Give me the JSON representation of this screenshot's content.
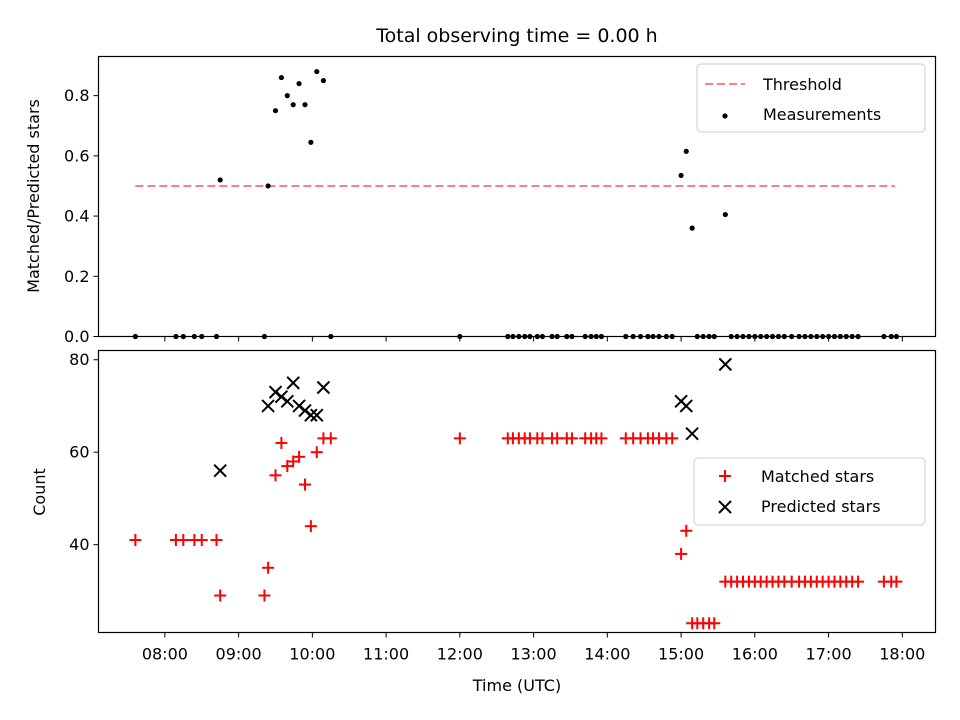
{
  "chart_data": {
    "type": "scatter",
    "title": "Total observing time = 0.00 h",
    "xlabel": "Time (UTC)",
    "xlim": [
      7.1,
      18.45
    ],
    "xticks": [
      {
        "value": 8,
        "label": "08:00"
      },
      {
        "value": 9,
        "label": "09:00"
      },
      {
        "value": 10,
        "label": "10:00"
      },
      {
        "value": 11,
        "label": "11:00"
      },
      {
        "value": 12,
        "label": "12:00"
      },
      {
        "value": 13,
        "label": "13:00"
      },
      {
        "value": 14,
        "label": "14:00"
      },
      {
        "value": 15,
        "label": "15:00"
      },
      {
        "value": 16,
        "label": "16:00"
      },
      {
        "value": 17,
        "label": "17:00"
      },
      {
        "value": 18,
        "label": "18:00"
      }
    ],
    "panels": [
      {
        "ylabel": "Matched/Predicted stars",
        "ylim": [
          0,
          0.93
        ],
        "yticks": [
          {
            "value": 0.0,
            "label": "0.0"
          },
          {
            "value": 0.2,
            "label": "0.2"
          },
          {
            "value": 0.4,
            "label": "0.4"
          },
          {
            "value": 0.6,
            "label": "0.6"
          },
          {
            "value": 0.8,
            "label": "0.8"
          }
        ],
        "legend": {
          "placement": "upper right",
          "entries": [
            "Threshold",
            "Measurements"
          ]
        },
        "threshold": {
          "name": "Threshold",
          "value": 0.5,
          "x_start": 7.6,
          "x_end": 17.9,
          "color": "#ff7f7f",
          "style": "dashed"
        },
        "series": [
          {
            "name": "Measurements",
            "marker": "dot",
            "color": "#000000",
            "x": [
              7.6,
              8.15,
              8.25,
              8.4,
              8.5,
              8.7,
              8.75,
              9.35,
              9.4,
              9.5,
              9.58,
              9.66,
              9.74,
              9.82,
              9.9,
              9.98,
              10.06,
              10.15,
              10.25,
              12.0,
              12.65,
              12.72,
              12.8,
              12.88,
              12.95,
              13.05,
              13.12,
              13.25,
              13.32,
              13.45,
              13.52,
              13.7,
              13.78,
              13.85,
              13.92,
              14.25,
              14.35,
              14.45,
              14.55,
              14.62,
              14.7,
              14.8,
              14.88,
              15.0,
              15.07,
              15.15,
              15.22,
              15.3,
              15.38,
              15.45,
              15.6,
              15.68,
              15.76,
              15.84,
              15.92,
              16.0,
              16.08,
              16.16,
              16.24,
              16.32,
              16.4,
              16.5,
              16.6,
              16.68,
              16.76,
              16.84,
              16.92,
              17.0,
              17.08,
              17.16,
              17.24,
              17.32,
              17.4,
              17.75,
              17.85,
              17.92
            ],
            "y": [
              0,
              0,
              0,
              0,
              0,
              0,
              0.52,
              0,
              0.5,
              0.75,
              0.86,
              0.8,
              0.77,
              0.84,
              0.77,
              0.645,
              0.88,
              0.85,
              0,
              0,
              0,
              0,
              0,
              0,
              0,
              0,
              0,
              0,
              0,
              0,
              0,
              0,
              0,
              0,
              0,
              0,
              0,
              0,
              0,
              0,
              0,
              0,
              0,
              0.535,
              0.615,
              0.36,
              0,
              0,
              0,
              0,
              0.405,
              0,
              0,
              0,
              0,
              0,
              0,
              0,
              0,
              0,
              0,
              0,
              0,
              0,
              0,
              0,
              0,
              0,
              0,
              0,
              0,
              0,
              0,
              0,
              0,
              0
            ]
          }
        ]
      },
      {
        "ylabel": "Count",
        "ylim": [
          21,
          82
        ],
        "yticks": [
          {
            "value": 40,
            "label": "40"
          },
          {
            "value": 60,
            "label": "60"
          },
          {
            "value": 80,
            "label": "80"
          }
        ],
        "legend": {
          "placement": "center right",
          "entries": [
            "Matched stars",
            "Predicted stars"
          ]
        },
        "series": [
          {
            "name": "Matched stars",
            "marker": "plus",
            "color": "#ff0000",
            "x": [
              7.6,
              8.15,
              8.25,
              8.4,
              8.5,
              8.7,
              8.75,
              9.35,
              9.4,
              9.5,
              9.58,
              9.66,
              9.74,
              9.82,
              9.9,
              9.98,
              10.06,
              10.15,
              10.25,
              12.0,
              12.65,
              12.72,
              12.8,
              12.88,
              12.95,
              13.05,
              13.12,
              13.25,
              13.32,
              13.45,
              13.52,
              13.7,
              13.78,
              13.85,
              13.92,
              14.25,
              14.35,
              14.45,
              14.55,
              14.62,
              14.7,
              14.8,
              14.88,
              15.0,
              15.07,
              15.15,
              15.22,
              15.3,
              15.38,
              15.45,
              15.6,
              15.68,
              15.76,
              15.84,
              15.92,
              16.0,
              16.08,
              16.16,
              16.24,
              16.32,
              16.4,
              16.5,
              16.6,
              16.68,
              16.76,
              16.84,
              16.92,
              17.0,
              17.08,
              17.16,
              17.24,
              17.32,
              17.4,
              17.75,
              17.85,
              17.92
            ],
            "y": [
              41,
              41,
              41,
              41,
              41,
              41,
              29,
              29,
              35,
              55,
              62,
              57,
              58,
              59,
              53,
              44,
              60,
              63,
              63,
              63,
              63,
              63,
              63,
              63,
              63,
              63,
              63,
              63,
              63,
              63,
              63,
              63,
              63,
              63,
              63,
              63,
              63,
              63,
              63,
              63,
              63,
              63,
              63,
              38,
              43,
              23,
              23,
              23,
              23,
              23,
              32,
              32,
              32,
              32,
              32,
              32,
              32,
              32,
              32,
              32,
              32,
              32,
              32,
              32,
              32,
              32,
              32,
              32,
              32,
              32,
              32,
              32,
              32,
              32,
              32,
              32
            ]
          },
          {
            "name": "Predicted stars",
            "marker": "x",
            "color": "#000000",
            "x": [
              8.75,
              9.4,
              9.5,
              9.58,
              9.66,
              9.74,
              9.82,
              9.9,
              9.98,
              10.06,
              10.15,
              15.0,
              15.07,
              15.15,
              15.6
            ],
            "y": [
              56,
              70,
              73,
              72,
              71,
              75,
              70,
              69,
              68,
              68,
              74,
              71,
              70,
              64,
              79
            ]
          }
        ]
      }
    ]
  }
}
